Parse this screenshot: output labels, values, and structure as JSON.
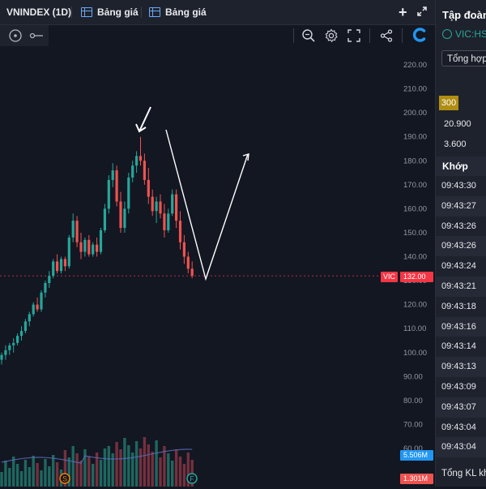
{
  "tabs": [
    {
      "label": "VNINDEX (1D)"
    },
    {
      "label": "Bảng giá"
    },
    {
      "label": "Bảng giá"
    }
  ],
  "chart_data": {
    "type": "candlestick",
    "symbol_tag": "VIC",
    "last_price_label": "132.00",
    "y_ticks": [
      "220.00",
      "210.00",
      "200.00",
      "190.00",
      "180.00",
      "170.00",
      "160.00",
      "150.00",
      "140.00",
      "130.00",
      "120.00",
      "110.00",
      "100.00",
      "90.00",
      "80.00",
      "70.00",
      "60.00"
    ],
    "ylim": [
      60,
      220
    ],
    "last_price": 132,
    "volume_tags": [
      "5.506M",
      "1.301M"
    ],
    "event_markers": [
      "S",
      "F"
    ],
    "candles": [
      {
        "o": 97,
        "h": 100,
        "l": 95,
        "c": 99
      },
      {
        "o": 99,
        "h": 103,
        "l": 97,
        "c": 101
      },
      {
        "o": 101,
        "h": 104,
        "l": 99,
        "c": 103
      },
      {
        "o": 103,
        "h": 106,
        "l": 100,
        "c": 104
      },
      {
        "o": 104,
        "h": 108,
        "l": 103,
        "c": 107
      },
      {
        "o": 107,
        "h": 111,
        "l": 105,
        "c": 109
      },
      {
        "o": 109,
        "h": 114,
        "l": 108,
        "c": 113
      },
      {
        "o": 113,
        "h": 117,
        "l": 111,
        "c": 116
      },
      {
        "o": 116,
        "h": 121,
        "l": 115,
        "c": 120
      },
      {
        "o": 120,
        "h": 123,
        "l": 117,
        "c": 118
      },
      {
        "o": 118,
        "h": 126,
        "l": 117,
        "c": 125
      },
      {
        "o": 125,
        "h": 130,
        "l": 123,
        "c": 129
      },
      {
        "o": 129,
        "h": 134,
        "l": 127,
        "c": 132
      },
      {
        "o": 132,
        "h": 139,
        "l": 131,
        "c": 138
      },
      {
        "o": 138,
        "h": 141,
        "l": 133,
        "c": 134
      },
      {
        "o": 134,
        "h": 140,
        "l": 133,
        "c": 139
      },
      {
        "o": 139,
        "h": 140,
        "l": 134,
        "c": 136
      },
      {
        "o": 136,
        "h": 149,
        "l": 135,
        "c": 148
      },
      {
        "o": 148,
        "h": 158,
        "l": 146,
        "c": 155
      },
      {
        "o": 155,
        "h": 157,
        "l": 144,
        "c": 146
      },
      {
        "o": 146,
        "h": 150,
        "l": 139,
        "c": 142
      },
      {
        "o": 142,
        "h": 148,
        "l": 140,
        "c": 147
      },
      {
        "o": 147,
        "h": 149,
        "l": 140,
        "c": 141
      },
      {
        "o": 141,
        "h": 146,
        "l": 140,
        "c": 145
      },
      {
        "o": 145,
        "h": 148,
        "l": 140,
        "c": 142
      },
      {
        "o": 142,
        "h": 152,
        "l": 141,
        "c": 151
      },
      {
        "o": 151,
        "h": 162,
        "l": 150,
        "c": 160
      },
      {
        "o": 160,
        "h": 174,
        "l": 158,
        "c": 172
      },
      {
        "o": 172,
        "h": 179,
        "l": 169,
        "c": 176
      },
      {
        "o": 176,
        "h": 178,
        "l": 161,
        "c": 163
      },
      {
        "o": 163,
        "h": 167,
        "l": 150,
        "c": 152
      },
      {
        "o": 152,
        "h": 163,
        "l": 150,
        "c": 160
      },
      {
        "o": 160,
        "h": 175,
        "l": 158,
        "c": 173
      },
      {
        "o": 173,
        "h": 180,
        "l": 171,
        "c": 178
      },
      {
        "o": 178,
        "h": 184,
        "l": 175,
        "c": 182
      },
      {
        "o": 182,
        "h": 190,
        "l": 178,
        "c": 180
      },
      {
        "o": 180,
        "h": 183,
        "l": 170,
        "c": 172
      },
      {
        "o": 172,
        "h": 177,
        "l": 162,
        "c": 165
      },
      {
        "o": 165,
        "h": 168,
        "l": 157,
        "c": 159
      },
      {
        "o": 159,
        "h": 165,
        "l": 154,
        "c": 163
      },
      {
        "o": 163,
        "h": 166,
        "l": 156,
        "c": 158
      },
      {
        "o": 158,
        "h": 162,
        "l": 148,
        "c": 151
      },
      {
        "o": 151,
        "h": 160,
        "l": 150,
        "c": 158
      },
      {
        "o": 158,
        "h": 168,
        "l": 157,
        "c": 166
      },
      {
        "o": 166,
        "h": 168,
        "l": 152,
        "c": 155
      },
      {
        "o": 155,
        "h": 159,
        "l": 143,
        "c": 146
      },
      {
        "o": 146,
        "h": 149,
        "l": 137,
        "c": 140
      },
      {
        "o": 140,
        "h": 142,
        "l": 133,
        "c": 135
      },
      {
        "o": 135,
        "h": 138,
        "l": 131,
        "c": 132
      }
    ],
    "annotations": [
      "arrow down at peak",
      "V-shaped drawing"
    ]
  },
  "panel": {
    "title": "Tập đoàn",
    "symbol": "VIC:HS",
    "dropdown": "Tổng hợp",
    "vol_badge": "300",
    "value_1": "20.900",
    "value_2": "3.600",
    "trades_header": "Khớp",
    "trades": [
      "09:43:30",
      "09:43:27",
      "09:43:26",
      "09:43:26",
      "09:43:24",
      "09:43:21",
      "09:43:18",
      "09:43:16",
      "09:43:14",
      "09:43:13",
      "09:43:09",
      "09:43:07",
      "09:43:04",
      "09:43:04"
    ],
    "total_label": "Tổng KL khớ"
  },
  "colors": {
    "up": "#26a69a",
    "down": "#ef5350",
    "price_tag": "#f23645",
    "vol_tag_up": "#2196f3",
    "vol_tag_down": "#ef5350",
    "badge": "#b08e12"
  }
}
